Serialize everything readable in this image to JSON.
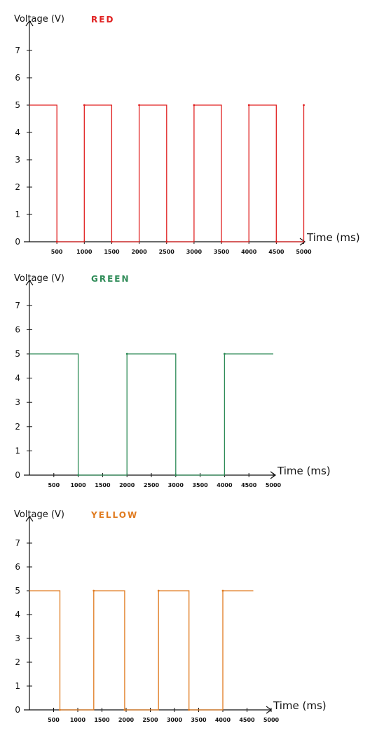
{
  "chart_data": [
    {
      "type": "line",
      "title": "RED",
      "ylabel": "Voltage (V)",
      "xlabel": "Time (ms)",
      "yticks": [
        "0",
        "1",
        "2",
        "3",
        "4",
        "5",
        "6",
        "7"
      ],
      "xticks": [
        "500",
        "1000",
        "1500",
        "2000",
        "2500",
        "3000",
        "3500",
        "4000",
        "4500",
        "5000"
      ],
      "xlim": [
        0,
        5000
      ],
      "ylim": [
        0,
        7
      ],
      "color": "#e02020",
      "series": [
        {
          "x": [
            0,
            500,
            500,
            1000,
            1000,
            1500,
            1500,
            2000,
            2000,
            2500,
            2500,
            3000,
            3000,
            3500,
            3500,
            4000,
            4000,
            4500,
            4500,
            5000,
            5000
          ],
          "y": [
            5,
            5,
            0,
            0,
            5,
            5,
            0,
            0,
            5,
            5,
            0,
            0,
            5,
            5,
            0,
            0,
            5,
            5,
            0,
            0,
            5
          ]
        }
      ]
    },
    {
      "type": "line",
      "title": "GREEN",
      "ylabel": "Voltage (V)",
      "xlabel": "Time (ms)",
      "yticks": [
        "0",
        "1",
        "2",
        "3",
        "4",
        "5",
        "6",
        "7"
      ],
      "xticks": [
        "500",
        "1000",
        "1500",
        "2000",
        "2500",
        "3000",
        "3500",
        "4000",
        "4500",
        "5000"
      ],
      "xlim": [
        0,
        5000
      ],
      "ylim": [
        0,
        7
      ],
      "color": "#2e8b57",
      "series": [
        {
          "x": [
            0,
            1000,
            1000,
            2000,
            2000,
            3000,
            3000,
            4000,
            4000,
            5000
          ],
          "y": [
            5,
            5,
            0,
            0,
            5,
            5,
            0,
            0,
            5,
            5
          ]
        }
      ]
    },
    {
      "type": "line",
      "title": "YELLOW",
      "ylabel": "Voltage (V)",
      "xlabel": "Time (ms)",
      "yticks": [
        "0",
        "1",
        "2",
        "3",
        "4",
        "5",
        "6",
        "7"
      ],
      "xticks": [
        "500",
        "1000",
        "1500",
        "2000",
        "2500",
        "3000",
        "3500",
        "4000",
        "4500",
        "5000"
      ],
      "xlim": [
        0,
        5000
      ],
      "ylim": [
        0,
        7
      ],
      "color": "#e07b20",
      "series": [
        {
          "x": [
            0,
            630,
            630,
            1330,
            1330,
            1970,
            1970,
            2670,
            2670,
            3300,
            3300,
            4000,
            4000,
            4630
          ],
          "y": [
            5,
            5,
            0,
            0,
            5,
            5,
            0,
            0,
            5,
            5,
            0,
            0,
            5,
            5
          ]
        }
      ]
    }
  ]
}
